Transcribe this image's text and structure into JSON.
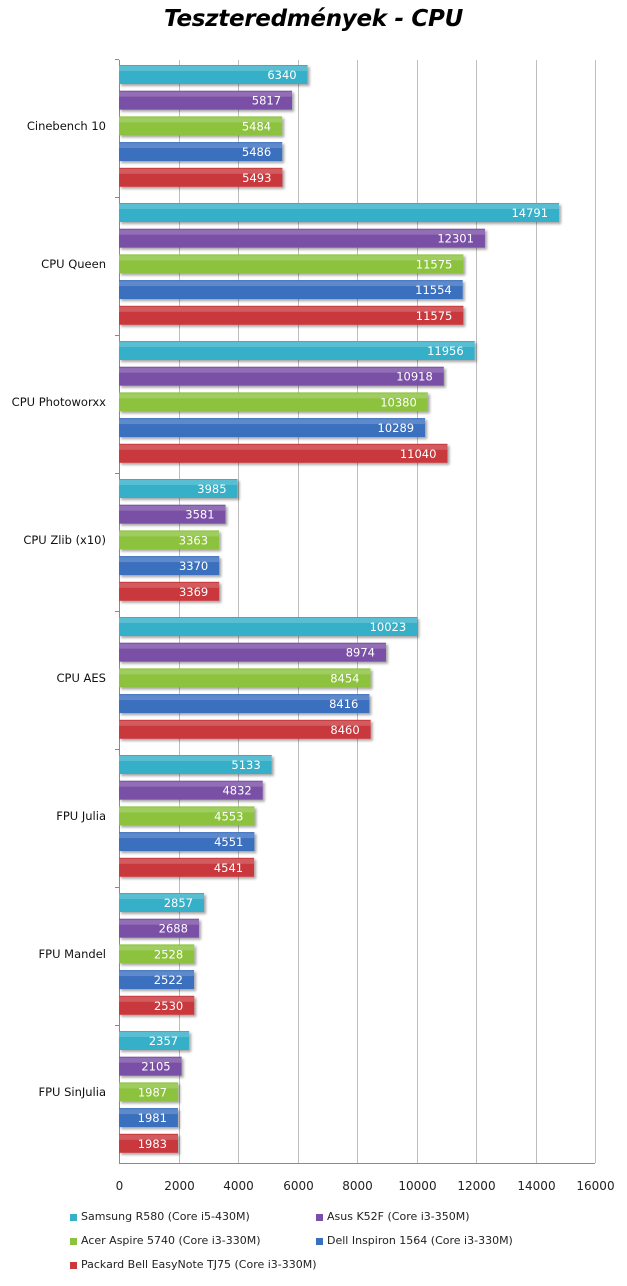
{
  "chart_data": {
    "type": "bar",
    "orientation": "horizontal",
    "title": "Teszteredmények - CPU",
    "categories": [
      "Cinebench 10",
      "CPU Queen",
      "CPU Photoworxx",
      "CPU Zlib (x10)",
      "CPU AES",
      "FPU Julia",
      "FPU Mandel",
      "FPU SinJulia"
    ],
    "series": [
      {
        "name": "Samsung R580 (Core i5-430M)",
        "color": "#35b0c8",
        "values": [
          6340,
          14791,
          11956,
          3985,
          10023,
          5133,
          2857,
          2357
        ]
      },
      {
        "name": "Asus K52F (Core i3-350M)",
        "color": "#7a4fa6",
        "values": [
          5817,
          12301,
          10918,
          3581,
          8974,
          4832,
          2688,
          2105
        ]
      },
      {
        "name": "Acer Aspire 5740 (Core i3-330M)",
        "color": "#8cc23c",
        "values": [
          5484,
          11575,
          10380,
          3363,
          8454,
          4553,
          2528,
          1987
        ]
      },
      {
        "name": "Dell Inspiron 1564 (Core i3-330M)",
        "color": "#3a6fbf",
        "values": [
          5486,
          11554,
          10289,
          3370,
          8416,
          4551,
          2522,
          1981
        ]
      },
      {
        "name": "Packard Bell EasyNote  TJ75 (Core i3-330M)",
        "color": "#c9393d",
        "values": [
          5493,
          11575,
          11040,
          3369,
          8460,
          4541,
          2530,
          1983
        ]
      }
    ],
    "xlim": [
      0,
      16000
    ],
    "xticks": [
      "0",
      "2000",
      "4000",
      "6000",
      "8000",
      "10000",
      "12000",
      "14000",
      "16000"
    ],
    "grid": true,
    "legend_position": "bottom",
    "data_labels": true
  }
}
